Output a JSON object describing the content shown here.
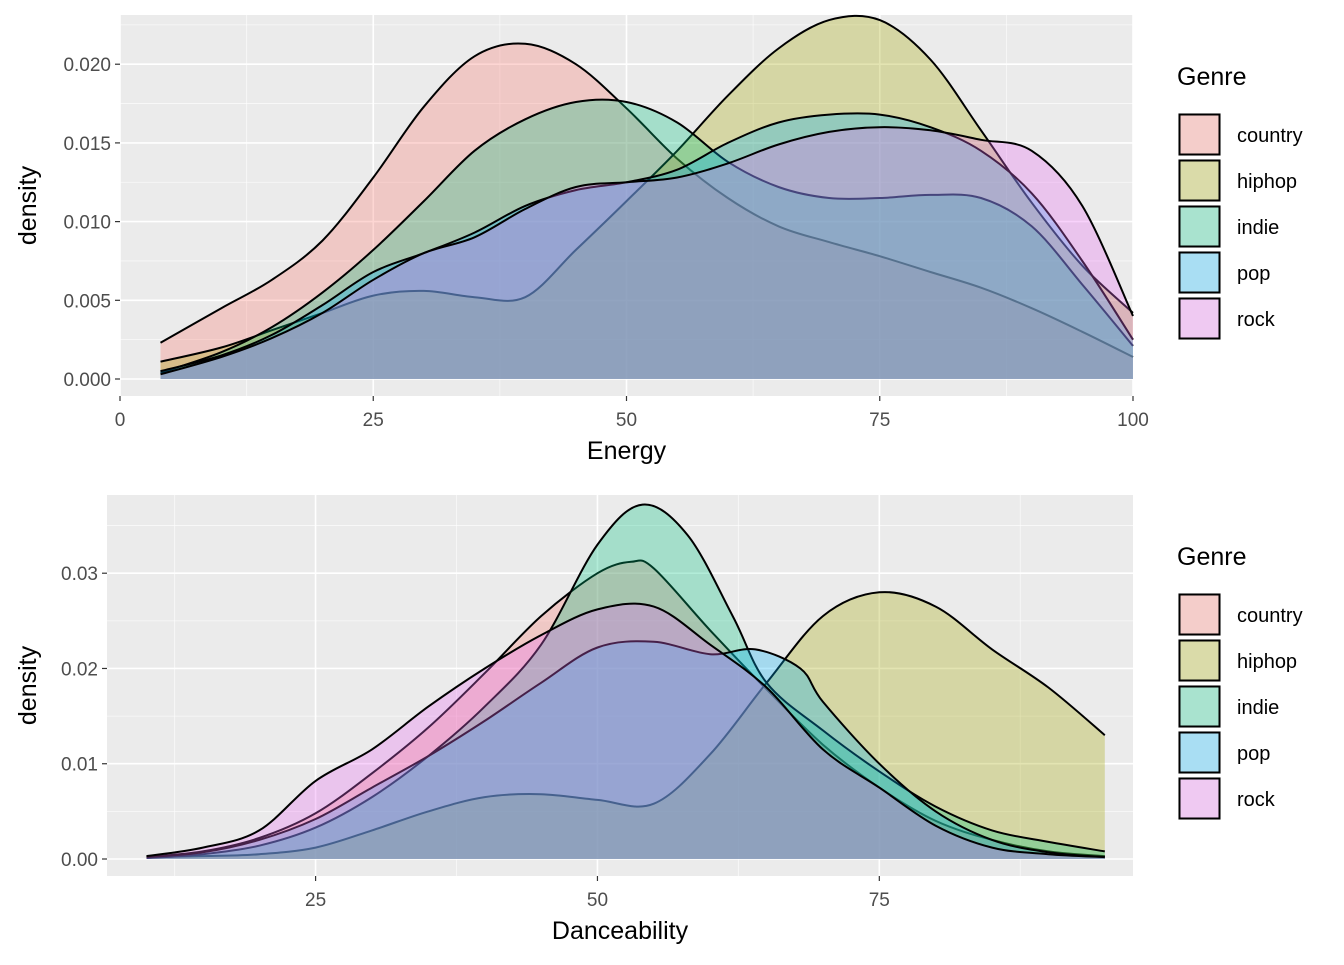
{
  "palette": {
    "country": "#F8766D",
    "hiphop": "#A3A500",
    "indie": "#00BF7D",
    "pop": "#00B0F6",
    "rock": "#E76BF3",
    "panel_bg": "#EBEBEB",
    "grid": "#FFFFFF"
  },
  "legend": {
    "title": "Genre",
    "items": [
      "country",
      "hiphop",
      "indie",
      "pop",
      "rock"
    ]
  },
  "chart_data": [
    {
      "type": "area",
      "title": "",
      "xlabel": "Energy",
      "ylabel": "density",
      "xlim": [
        0,
        100
      ],
      "ylim": [
        0,
        0.023
      ],
      "x_ticks": [
        0,
        25,
        50,
        75,
        100
      ],
      "x_tick_labels": [
        "0",
        "25",
        "50",
        "75",
        "100"
      ],
      "y_ticks": [
        0,
        0.005,
        0.01,
        0.015,
        0.02
      ],
      "y_tick_labels": [
        "0.000",
        "0.005",
        "0.010",
        "0.015",
        "0.020"
      ],
      "grid": true,
      "legend_position": "right",
      "series": [
        {
          "name": "country",
          "x": [
            4,
            10,
            15,
            20,
            25,
            30,
            35,
            40,
            45,
            50,
            55,
            60,
            65,
            70,
            75,
            80,
            85,
            90,
            95,
            100
          ],
          "values": [
            0.0023,
            0.0045,
            0.0063,
            0.0088,
            0.0128,
            0.0173,
            0.0205,
            0.0213,
            0.02,
            0.0172,
            0.014,
            0.0115,
            0.0097,
            0.0087,
            0.0078,
            0.0068,
            0.0058,
            0.0045,
            0.003,
            0.0014
          ]
        },
        {
          "name": "hiphop",
          "x": [
            4,
            10,
            15,
            20,
            25,
            30,
            35,
            40,
            45,
            50,
            55,
            60,
            65,
            70,
            75,
            80,
            85,
            90,
            95,
            100
          ],
          "values": [
            0.0011,
            0.002,
            0.0031,
            0.0042,
            0.0053,
            0.0056,
            0.0052,
            0.0052,
            0.0082,
            0.0113,
            0.0145,
            0.018,
            0.021,
            0.0228,
            0.0228,
            0.0203,
            0.0158,
            0.0112,
            0.0072,
            0.0042
          ]
        },
        {
          "name": "indie",
          "x": [
            4,
            10,
            15,
            20,
            25,
            30,
            35,
            40,
            45,
            50,
            55,
            60,
            65,
            70,
            75,
            80,
            85,
            90,
            95,
            100
          ],
          "values": [
            0.0004,
            0.0017,
            0.0033,
            0.0055,
            0.0082,
            0.0113,
            0.0145,
            0.0165,
            0.0176,
            0.0176,
            0.0163,
            0.0138,
            0.0122,
            0.0115,
            0.0115,
            0.0117,
            0.0115,
            0.0097,
            0.006,
            0.0021
          ]
        },
        {
          "name": "pop",
          "x": [
            4,
            10,
            15,
            20,
            25,
            30,
            35,
            40,
            45,
            50,
            55,
            60,
            65,
            70,
            75,
            80,
            85,
            90,
            95,
            100
          ],
          "values": [
            0.0005,
            0.0015,
            0.0028,
            0.0047,
            0.0068,
            0.008,
            0.0093,
            0.011,
            0.012,
            0.0125,
            0.0133,
            0.015,
            0.0163,
            0.0168,
            0.0168,
            0.016,
            0.0145,
            0.0118,
            0.0075,
            0.0025
          ]
        },
        {
          "name": "rock",
          "x": [
            4,
            10,
            15,
            20,
            25,
            30,
            35,
            40,
            45,
            50,
            55,
            60,
            65,
            70,
            75,
            80,
            85,
            90,
            95,
            100
          ],
          "values": [
            0.0003,
            0.0014,
            0.0026,
            0.0042,
            0.0063,
            0.008,
            0.009,
            0.0108,
            0.0122,
            0.0125,
            0.0128,
            0.0137,
            0.0149,
            0.0157,
            0.016,
            0.0158,
            0.0152,
            0.0145,
            0.011,
            0.004
          ]
        }
      ]
    },
    {
      "type": "area",
      "title": "",
      "xlabel": "Danceability",
      "ylabel": "density",
      "xlim": [
        6.5,
        97.5
      ],
      "ylim": [
        0,
        0.038
      ],
      "x_ticks": [
        25,
        50,
        75
      ],
      "x_tick_labels": [
        "25",
        "50",
        "75"
      ],
      "y_ticks": [
        0,
        0.01,
        0.02,
        0.03
      ],
      "y_tick_labels": [
        "0.00",
        "0.01",
        "0.02",
        "0.03"
      ],
      "grid": true,
      "legend_position": "right",
      "series": [
        {
          "name": "country",
          "x": [
            10,
            15,
            20,
            25,
            30,
            35,
            40,
            45,
            50,
            53,
            55,
            60,
            65,
            70,
            75,
            80,
            85,
            90,
            95
          ],
          "values": [
            0.0002,
            0.0008,
            0.0022,
            0.0048,
            0.009,
            0.0138,
            0.0195,
            0.0255,
            0.03,
            0.0312,
            0.0305,
            0.024,
            0.0178,
            0.012,
            0.0075,
            0.004,
            0.002,
            0.0008,
            0.0003
          ]
        },
        {
          "name": "hiphop",
          "x": [
            10,
            15,
            20,
            25,
            30,
            35,
            40,
            45,
            50,
            55,
            60,
            65,
            70,
            75,
            80,
            85,
            90,
            95
          ],
          "values": [
            0.0002,
            0.0003,
            0.0005,
            0.0012,
            0.003,
            0.005,
            0.0065,
            0.0068,
            0.0062,
            0.0058,
            0.011,
            0.0185,
            0.0255,
            0.028,
            0.0265,
            0.022,
            0.018,
            0.013
          ]
        },
        {
          "name": "indie",
          "x": [
            10,
            15,
            20,
            25,
            30,
            35,
            40,
            45,
            50,
            54,
            58,
            62,
            65,
            70,
            75,
            80,
            85,
            90,
            95
          ],
          "values": [
            0.0001,
            0.0005,
            0.0014,
            0.0033,
            0.0065,
            0.0108,
            0.016,
            0.0225,
            0.033,
            0.0372,
            0.034,
            0.0255,
            0.0185,
            0.0135,
            0.0092,
            0.0055,
            0.003,
            0.0018,
            0.0008
          ]
        },
        {
          "name": "pop",
          "x": [
            10,
            15,
            20,
            25,
            30,
            35,
            40,
            45,
            50,
            55,
            60,
            64,
            68,
            70,
            75,
            80,
            85,
            90,
            95
          ],
          "values": [
            0.0002,
            0.0007,
            0.002,
            0.0042,
            0.0075,
            0.0108,
            0.0145,
            0.0185,
            0.0222,
            0.0228,
            0.0215,
            0.022,
            0.02,
            0.0165,
            0.01,
            0.005,
            0.002,
            0.0007,
            0.0002
          ]
        },
        {
          "name": "rock",
          "x": [
            10,
            15,
            20,
            25,
            30,
            35,
            40,
            45,
            50,
            55,
            60,
            65,
            70,
            75,
            80,
            85,
            90,
            95
          ],
          "values": [
            0.0003,
            0.0012,
            0.003,
            0.0082,
            0.0115,
            0.016,
            0.02,
            0.0235,
            0.0262,
            0.0265,
            0.0225,
            0.018,
            0.0115,
            0.0075,
            0.0035,
            0.0012,
            0.0005,
            0.0002
          ]
        }
      ]
    }
  ]
}
